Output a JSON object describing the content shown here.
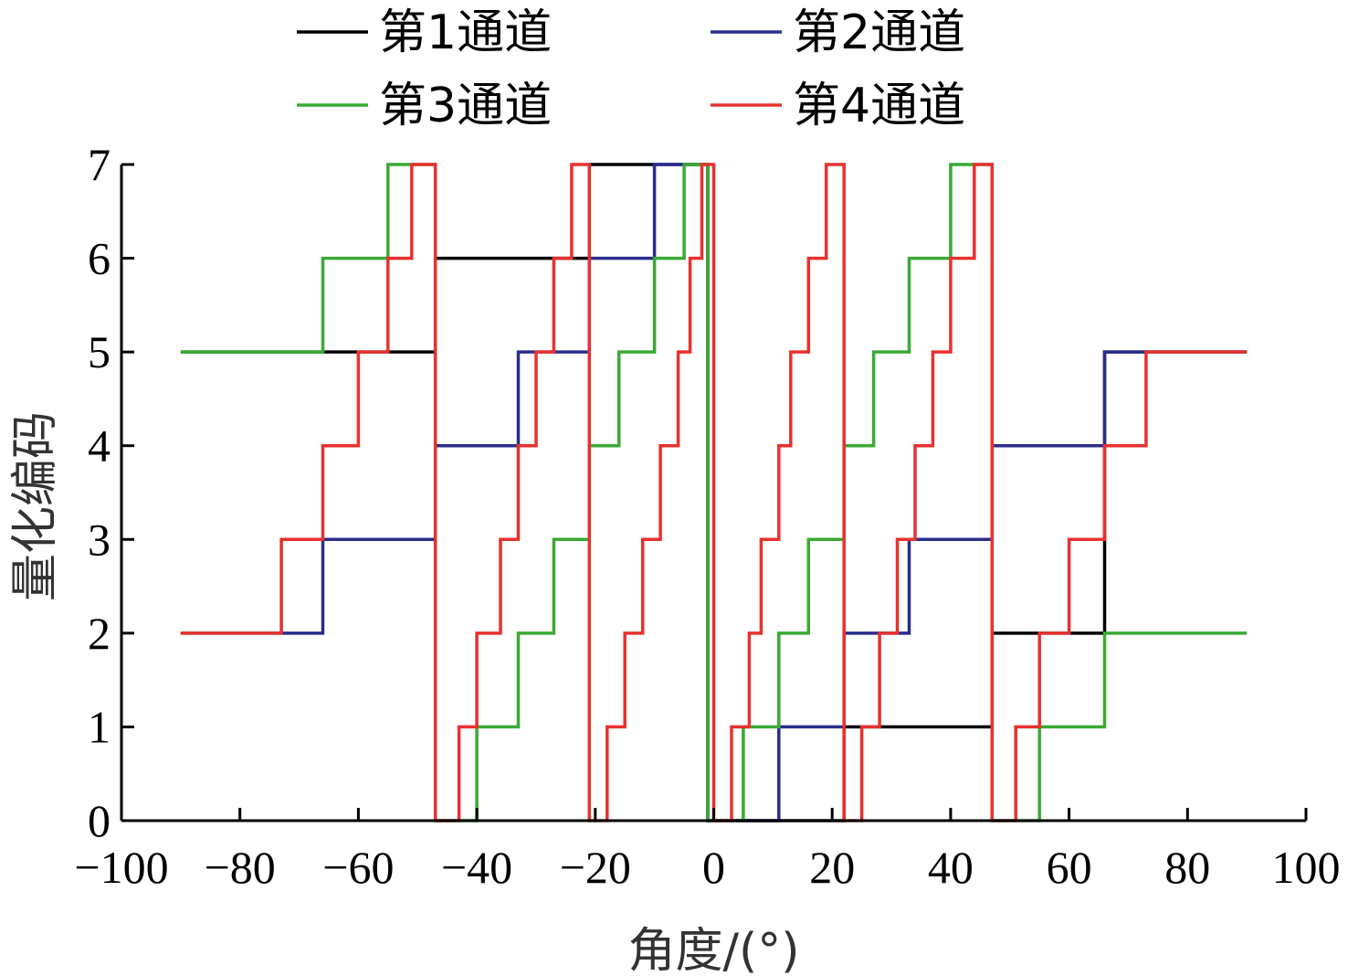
{
  "chart_data": {
    "type": "line",
    "xlabel": "角度/(°)",
    "ylabel": "量化编码",
    "xlim": [
      -100,
      100
    ],
    "ylim": [
      0,
      7
    ],
    "x_ticks": [
      -100,
      -80,
      -60,
      -40,
      -20,
      0,
      20,
      40,
      60,
      80,
      100
    ],
    "x_tick_labels": [
      "−100",
      "−80",
      "−60",
      "−40",
      "−20",
      "0",
      "20",
      "40",
      "60",
      "80",
      "100"
    ],
    "y_ticks": [
      0,
      1,
      2,
      3,
      4,
      5,
      6,
      7
    ],
    "y_tick_labels": [
      "0",
      "1",
      "2",
      "3",
      "4",
      "5",
      "6",
      "7"
    ],
    "grid": false,
    "legend_position": "top",
    "step": true,
    "series": [
      {
        "name": "第1通道",
        "color": "#000000",
        "points": [
          [
            -90,
            5
          ],
          [
            -47,
            5
          ],
          [
            -47,
            6
          ],
          [
            -21,
            6
          ],
          [
            -21,
            7
          ],
          [
            -1,
            7
          ],
          [
            -1,
            0
          ],
          [
            22,
            0
          ],
          [
            22,
            1
          ],
          [
            47,
            1
          ],
          [
            47,
            2
          ],
          [
            66,
            2
          ],
          [
            66,
            5
          ],
          [
            90,
            5
          ]
        ]
      },
      {
        "name": "第2通道",
        "color": "#2b2d8c",
        "points": [
          [
            -90,
            2
          ],
          [
            -66,
            2
          ],
          [
            -66,
            3
          ],
          [
            -47,
            3
          ],
          [
            -47,
            4
          ],
          [
            -33,
            4
          ],
          [
            -33,
            5
          ],
          [
            -21,
            5
          ],
          [
            -21,
            6
          ],
          [
            -10,
            6
          ],
          [
            -10,
            7
          ],
          [
            -1,
            7
          ],
          [
            -1,
            0
          ],
          [
            11,
            0
          ],
          [
            11,
            1
          ],
          [
            22,
            1
          ],
          [
            22,
            2
          ],
          [
            33,
            2
          ],
          [
            33,
            3
          ],
          [
            47,
            3
          ],
          [
            47,
            4
          ],
          [
            66,
            4
          ],
          [
            66,
            5
          ],
          [
            90,
            5
          ]
        ]
      },
      {
        "name": "第3通道",
        "color": "#3aaa35",
        "points": [
          [
            -90,
            5
          ],
          [
            -66,
            5
          ],
          [
            -66,
            6
          ],
          [
            -55,
            6
          ],
          [
            -55,
            7
          ],
          [
            -47,
            7
          ],
          [
            -47,
            0
          ],
          [
            -40,
            0
          ],
          [
            -40,
            1
          ],
          [
            -33,
            1
          ],
          [
            -33,
            2
          ],
          [
            -27,
            2
          ],
          [
            -27,
            3
          ],
          [
            -21,
            3
          ],
          [
            -21,
            4
          ],
          [
            -16,
            4
          ],
          [
            -16,
            5
          ],
          [
            -10,
            5
          ],
          [
            -10,
            6
          ],
          [
            -5,
            6
          ],
          [
            -5,
            7
          ],
          [
            -1,
            7
          ],
          [
            -1,
            0
          ],
          [
            5,
            0
          ],
          [
            5,
            1
          ],
          [
            11,
            1
          ],
          [
            11,
            2
          ],
          [
            16,
            2
          ],
          [
            16,
            3
          ],
          [
            22,
            3
          ],
          [
            22,
            4
          ],
          [
            27,
            4
          ],
          [
            27,
            5
          ],
          [
            33,
            5
          ],
          [
            33,
            6
          ],
          [
            40,
            6
          ],
          [
            40,
            7
          ],
          [
            47,
            7
          ],
          [
            47,
            0
          ],
          [
            55,
            0
          ],
          [
            55,
            1
          ],
          [
            66,
            1
          ],
          [
            66,
            2
          ],
          [
            90,
            2
          ]
        ]
      },
      {
        "name": "第4通道",
        "color": "#e8312f",
        "points": [
          [
            -90,
            2
          ],
          [
            -73,
            2
          ],
          [
            -73,
            3
          ],
          [
            -66,
            3
          ],
          [
            -66,
            4
          ],
          [
            -60,
            4
          ],
          [
            -60,
            5
          ],
          [
            -55,
            5
          ],
          [
            -55,
            6
          ],
          [
            -51,
            6
          ],
          [
            -51,
            7
          ],
          [
            -47,
            7
          ],
          [
            -47,
            0
          ],
          [
            -43,
            0
          ],
          [
            -43,
            1
          ],
          [
            -40,
            1
          ],
          [
            -40,
            2
          ],
          [
            -36,
            2
          ],
          [
            -36,
            3
          ],
          [
            -33,
            3
          ],
          [
            -33,
            4
          ],
          [
            -30,
            4
          ],
          [
            -30,
            5
          ],
          [
            -27,
            5
          ],
          [
            -27,
            6
          ],
          [
            -24,
            6
          ],
          [
            -24,
            7
          ],
          [
            -21,
            7
          ],
          [
            -21,
            0
          ],
          [
            -18,
            0
          ],
          [
            -18,
            1
          ],
          [
            -15,
            1
          ],
          [
            -15,
            2
          ],
          [
            -12,
            2
          ],
          [
            -12,
            3
          ],
          [
            -9,
            3
          ],
          [
            -9,
            4
          ],
          [
            -6,
            4
          ],
          [
            -6,
            5
          ],
          [
            -4,
            5
          ],
          [
            -4,
            6
          ],
          [
            -2,
            6
          ],
          [
            -2,
            7
          ],
          [
            0,
            7
          ],
          [
            0,
            0
          ],
          [
            3,
            0
          ],
          [
            3,
            1
          ],
          [
            6,
            1
          ],
          [
            6,
            2
          ],
          [
            8,
            2
          ],
          [
            8,
            3
          ],
          [
            11,
            3
          ],
          [
            11,
            4
          ],
          [
            13,
            4
          ],
          [
            13,
            5
          ],
          [
            16,
            5
          ],
          [
            16,
            6
          ],
          [
            19,
            6
          ],
          [
            19,
            7
          ],
          [
            22,
            7
          ],
          [
            22,
            0
          ],
          [
            25,
            0
          ],
          [
            25,
            1
          ],
          [
            28,
            1
          ],
          [
            28,
            2
          ],
          [
            31,
            2
          ],
          [
            31,
            3
          ],
          [
            34,
            3
          ],
          [
            34,
            4
          ],
          [
            37,
            4
          ],
          [
            37,
            5
          ],
          [
            40,
            5
          ],
          [
            40,
            6
          ],
          [
            44,
            6
          ],
          [
            44,
            7
          ],
          [
            47,
            7
          ],
          [
            47,
            0
          ],
          [
            51,
            0
          ],
          [
            51,
            1
          ],
          [
            55,
            1
          ],
          [
            55,
            2
          ],
          [
            60,
            2
          ],
          [
            60,
            3
          ],
          [
            66,
            3
          ],
          [
            66,
            4
          ],
          [
            73,
            4
          ],
          [
            73,
            5
          ],
          [
            90,
            5
          ]
        ]
      }
    ]
  }
}
